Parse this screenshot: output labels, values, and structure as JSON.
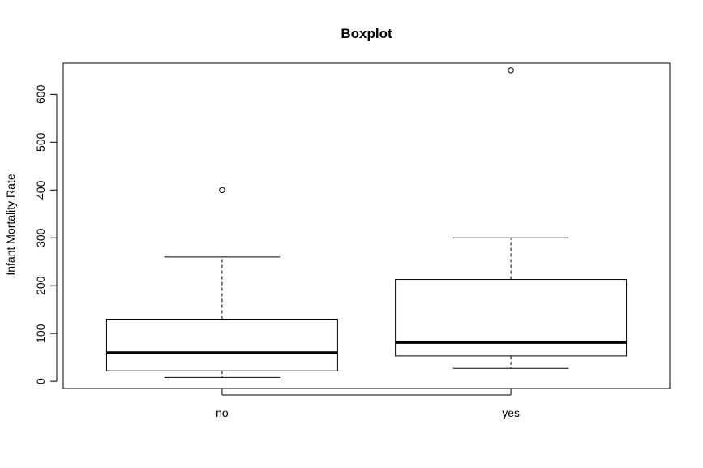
{
  "chart_data": {
    "type": "boxplot",
    "title": "Boxplot",
    "xlabel": "",
    "ylabel": "Infant Mortality Rate",
    "categories": [
      "no",
      "yes"
    ],
    "ylim": [
      -15,
      665
    ],
    "yticks": [
      0,
      100,
      200,
      300,
      400,
      500,
      600
    ],
    "ytick_labels": [
      "0",
      "100",
      "200",
      "300",
      "400",
      "500",
      "600"
    ],
    "boxes": [
      {
        "category": "no",
        "whisker_low": 8,
        "q1": 22,
        "median": 60,
        "q3": 130,
        "whisker_high": 260,
        "outliers": [
          400
        ]
      },
      {
        "category": "yes",
        "whisker_low": 27,
        "q1": 53,
        "median": 81,
        "q3": 213,
        "whisker_high": 300,
        "outliers": [
          650
        ]
      }
    ],
    "grid": false,
    "legend": "none"
  }
}
